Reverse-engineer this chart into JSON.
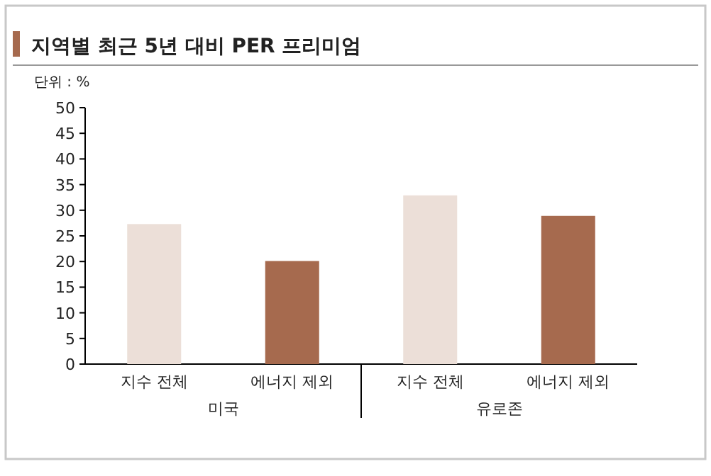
{
  "chart_data": {
    "type": "bar",
    "title": "지역별 최근 5년 대비 PER 프리미엄",
    "ylabel": "단위 : %",
    "categories": [
      "지수 전체",
      "에너지 제외",
      "지수 전체",
      "에너지 제외"
    ],
    "values": [
      27.3,
      20.1,
      32.9,
      28.9
    ],
    "colors": [
      "#ecdfd8",
      "#a66a4e",
      "#ecdfd8",
      "#a66a4e"
    ],
    "ylim": [
      0,
      50
    ],
    "yticks": [
      0,
      5,
      10,
      15,
      20,
      25,
      30,
      35,
      40,
      45,
      50
    ],
    "grid": false,
    "annotations": [
      "미국",
      "유로존"
    ]
  }
}
